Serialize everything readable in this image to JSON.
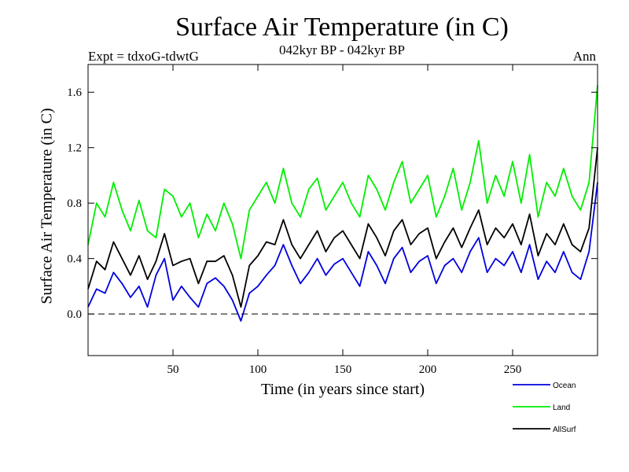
{
  "header": {
    "title": "Surface Air Temperature (in C)",
    "subtitle": "042kyr BP - 042kyr BP",
    "expt": "Expt = tdxoG-tdwtG",
    "period": "Ann"
  },
  "chart_data": {
    "type": "line",
    "title": "Surface Air Temperature (in C)",
    "subtitle": "042kyr BP - 042kyr BP",
    "xlabel": "Time (in years since start)",
    "ylabel": "Surface Air Temperature (in C)",
    "xlim": [
      0,
      300
    ],
    "ylim": [
      -0.3,
      1.8
    ],
    "xticks": [
      50,
      100,
      150,
      200,
      250
    ],
    "xtick_labels": [
      "50",
      "100",
      "150",
      "200",
      "250"
    ],
    "yticks": [
      0.0,
      0.4,
      0.8,
      1.2,
      1.6
    ],
    "ytick_labels": [
      "0.0",
      "0.4",
      "0.8",
      "1.2",
      "1.6"
    ],
    "zero_line": true,
    "grid": false,
    "legend_position": "bottom-right",
    "x": [
      0,
      5,
      10,
      15,
      20,
      25,
      30,
      35,
      40,
      45,
      50,
      55,
      60,
      65,
      70,
      75,
      80,
      85,
      90,
      95,
      100,
      105,
      110,
      115,
      120,
      125,
      130,
      135,
      140,
      145,
      150,
      155,
      160,
      165,
      170,
      175,
      180,
      185,
      190,
      195,
      200,
      205,
      210,
      215,
      220,
      225,
      230,
      235,
      240,
      245,
      250,
      255,
      260,
      265,
      270,
      275,
      280,
      285,
      290,
      295,
      300
    ],
    "series": [
      {
        "name": "Ocean",
        "color": "#0000dd",
        "values": [
          0.05,
          0.18,
          0.15,
          0.3,
          0.22,
          0.12,
          0.2,
          0.05,
          0.28,
          0.4,
          0.1,
          0.2,
          0.12,
          0.05,
          0.22,
          0.26,
          0.2,
          0.1,
          -0.05,
          0.15,
          0.2,
          0.28,
          0.35,
          0.5,
          0.35,
          0.22,
          0.3,
          0.4,
          0.28,
          0.36,
          0.4,
          0.3,
          0.2,
          0.45,
          0.35,
          0.22,
          0.4,
          0.48,
          0.3,
          0.38,
          0.42,
          0.22,
          0.35,
          0.4,
          0.3,
          0.45,
          0.55,
          0.3,
          0.4,
          0.35,
          0.45,
          0.3,
          0.5,
          0.25,
          0.38,
          0.3,
          0.45,
          0.3,
          0.25,
          0.45,
          0.95
        ]
      },
      {
        "name": "Land",
        "color": "#00ee00",
        "values": [
          0.5,
          0.8,
          0.7,
          0.95,
          0.75,
          0.6,
          0.82,
          0.6,
          0.55,
          0.9,
          0.85,
          0.7,
          0.8,
          0.55,
          0.72,
          0.6,
          0.8,
          0.65,
          0.4,
          0.75,
          0.85,
          0.95,
          0.8,
          1.05,
          0.8,
          0.7,
          0.9,
          0.98,
          0.75,
          0.85,
          0.95,
          0.8,
          0.7,
          1.0,
          0.9,
          0.75,
          0.95,
          1.1,
          0.8,
          0.9,
          1.0,
          0.7,
          0.85,
          1.05,
          0.75,
          0.95,
          1.25,
          0.8,
          1.0,
          0.85,
          1.1,
          0.8,
          1.15,
          0.7,
          0.95,
          0.85,
          1.05,
          0.85,
          0.75,
          0.95,
          1.65
        ]
      },
      {
        "name": "AllSurf",
        "color": "#000000",
        "values": [
          0.18,
          0.38,
          0.32,
          0.52,
          0.4,
          0.28,
          0.42,
          0.25,
          0.38,
          0.58,
          0.35,
          0.38,
          0.4,
          0.22,
          0.38,
          0.38,
          0.42,
          0.28,
          0.05,
          0.35,
          0.42,
          0.52,
          0.5,
          0.68,
          0.5,
          0.4,
          0.5,
          0.6,
          0.45,
          0.55,
          0.6,
          0.5,
          0.4,
          0.65,
          0.55,
          0.42,
          0.6,
          0.68,
          0.5,
          0.58,
          0.62,
          0.4,
          0.52,
          0.62,
          0.48,
          0.62,
          0.75,
          0.5,
          0.62,
          0.55,
          0.65,
          0.5,
          0.72,
          0.42,
          0.58,
          0.5,
          0.65,
          0.5,
          0.45,
          0.62,
          1.2
        ]
      }
    ]
  }
}
